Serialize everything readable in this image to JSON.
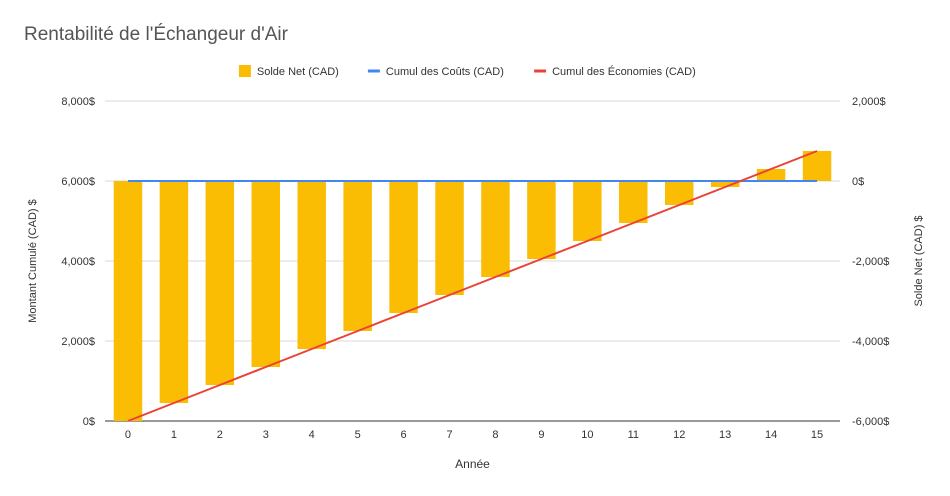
{
  "chart_data": {
    "type": "bar",
    "title": "Rentabilité de l'Échangeur d'Air",
    "xlabel": "Année",
    "ylabel_left": "Montant Cumulé (CAD) $",
    "ylabel_right": "Solde Net (CAD) $",
    "categories": [
      "0",
      "1",
      "2",
      "3",
      "4",
      "5",
      "6",
      "7",
      "8",
      "9",
      "10",
      "11",
      "12",
      "13",
      "14",
      "15"
    ],
    "left_axis": {
      "ylim": [
        0,
        8000
      ],
      "ticks": [
        "0$",
        "2,000$",
        "4,000$",
        "6,000$",
        "8,000$"
      ]
    },
    "right_axis": {
      "ylim": [
        -6000,
        2000
      ],
      "ticks": [
        "-6,000$",
        "-4,000$",
        "-2,000$",
        "0$",
        "2,000$"
      ]
    },
    "legend_position": "top-center",
    "grid": true,
    "series": [
      {
        "name": "Solde Net (CAD)",
        "type": "bar",
        "axis": "right",
        "color": "#fbbc04",
        "values": [
          -6000,
          -5550,
          -5100,
          -4650,
          -4200,
          -3750,
          -3300,
          -2850,
          -2400,
          -1950,
          -1500,
          -1050,
          -600,
          -150,
          300,
          750
        ]
      },
      {
        "name": "Cumul des Coûts (CAD)",
        "type": "line",
        "axis": "left",
        "color": "#4285f4",
        "values": [
          6000,
          6000,
          6000,
          6000,
          6000,
          6000,
          6000,
          6000,
          6000,
          6000,
          6000,
          6000,
          6000,
          6000,
          6000,
          6000
        ]
      },
      {
        "name": "Cumul des Économies (CAD)",
        "type": "line",
        "axis": "left",
        "color": "#ea4335",
        "values": [
          0,
          450,
          900,
          1350,
          1800,
          2250,
          2700,
          3150,
          3600,
          4050,
          4500,
          4950,
          5400,
          5850,
          6300,
          6750
        ]
      }
    ]
  }
}
